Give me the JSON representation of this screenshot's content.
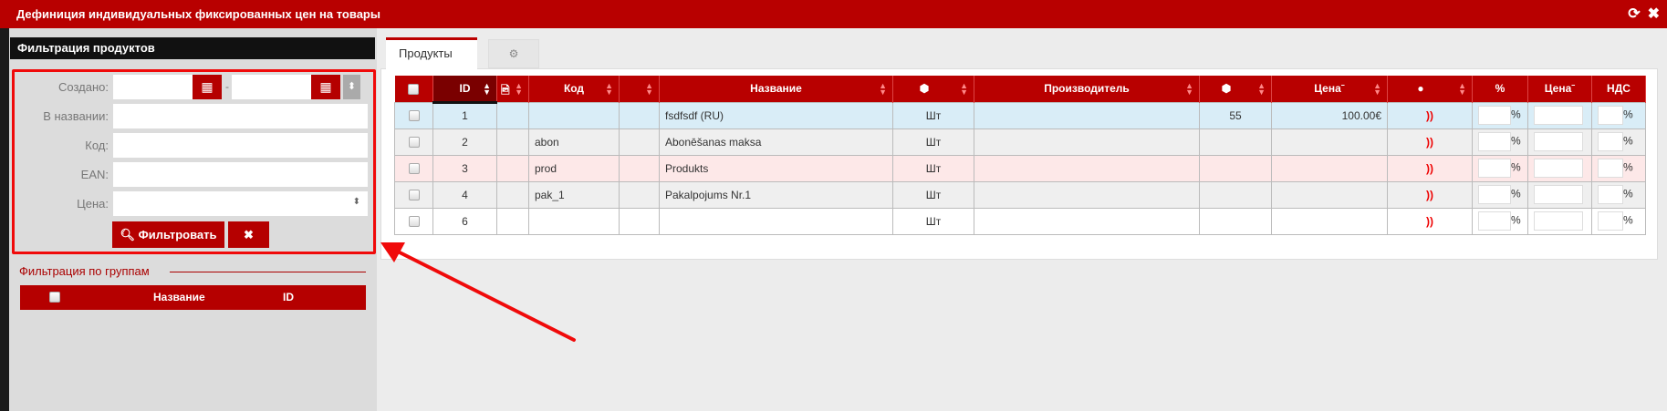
{
  "window": {
    "title": "Дефиниция индивидуальных фиксированных цен на товары",
    "refresh_icon": "refresh-icon",
    "close_icon": "close-icon"
  },
  "filter": {
    "title": "Фильтрация продуктов",
    "created_label": "Создано:",
    "date_separator": "-",
    "name_label": "В названии:",
    "code_label": "Код:",
    "ean_label": "EAN:",
    "price_label": "Цена:",
    "filter_button": "Фильтровать",
    "clear_button": "✖"
  },
  "groups": {
    "title": "Фильтрация по группам",
    "columns": [
      "Название",
      "ID"
    ]
  },
  "tabs": [
    {
      "label": "Продукты",
      "active": true
    },
    {
      "label": "",
      "icon": "gear-icon"
    }
  ],
  "table": {
    "columns": [
      "ID",
      "Код",
      "Название",
      "Производитель",
      "Цена",
      "%",
      "Цена",
      "НДС"
    ],
    "rows": [
      {
        "id": "1",
        "code": "",
        "name": "fsdfsdf (RU)",
        "unit": "Шт",
        "manufacturer": "",
        "stock": "55",
        "price": "100.00€",
        "bg": "#d9edf7"
      },
      {
        "id": "2",
        "code": "abon",
        "name": "Abonēšanas maksa",
        "unit": "Шт",
        "manufacturer": "",
        "stock": "",
        "price": "",
        "bg": "#efefef"
      },
      {
        "id": "3",
        "code": "prod",
        "name": "Produkts",
        "unit": "Шт",
        "manufacturer": "",
        "stock": "",
        "price": "",
        "bg": "#fde8e8"
      },
      {
        "id": "4",
        "code": "pak_1",
        "name": "Pakalpojums Nr.1",
        "unit": "Шт",
        "manufacturer": "",
        "stock": "",
        "price": "",
        "bg": "#efefef"
      },
      {
        "id": "6",
        "code": "",
        "name": "",
        "unit": "Шт",
        "manufacturer": "",
        "stock": "",
        "price": "",
        "bg": "#ffffff"
      }
    ],
    "percent_sign": "%"
  },
  "colors": {
    "brand": "#b80000",
    "annotation": "#f00a0a"
  }
}
